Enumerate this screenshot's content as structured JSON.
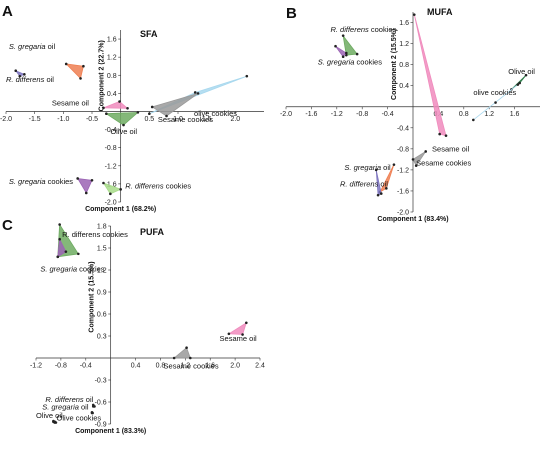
{
  "chart_data": [
    {
      "panel": "A",
      "type": "scatter",
      "title": "SFA",
      "xlabel": "Component 1 (68.2%)",
      "ylabel": "Component 2 (22.7%)",
      "xlim": [
        -2.0,
        2.5
      ],
      "ylim": [
        -2.0,
        1.8
      ],
      "xticks": [
        "-2.0",
        "-1.5",
        "-1.0",
        "-0.5",
        "0.5",
        "1.0",
        "1.5",
        "2.0"
      ],
      "yticks": [
        "1.6",
        "1.2",
        "0.8",
        "0.4",
        "-0.4",
        "-0.8",
        "-1.2",
        "-1.6",
        "-2.0"
      ],
      "series": [
        {
          "name": "S. gregaria oil",
          "italic": "S. gregaria",
          "rest": " oil",
          "color": "#ef7f52",
          "points": [
            [
              -0.95,
              1.05
            ],
            [
              -0.65,
              1.0
            ],
            [
              -0.7,
              0.73
            ]
          ],
          "label_at": [
            -1.95,
            1.38
          ]
        },
        {
          "name": "R. differens oil",
          "italic": "R. differens",
          "rest": " oil",
          "color": "#7d74bf",
          "points": [
            [
              -1.83,
              0.9
            ],
            [
              -1.68,
              0.82
            ],
            [
              -1.76,
              0.78
            ]
          ],
          "label_at": [
            -2.0,
            0.65
          ]
        },
        {
          "name": "Sesame oil",
          "color": "#f08bbd",
          "points": [
            [
              -0.3,
              0.08
            ],
            [
              -0.02,
              0.22
            ],
            [
              0.12,
              0.07
            ]
          ],
          "label_at": [
            -1.2,
            0.13
          ]
        },
        {
          "name": "olive cookies",
          "color": "#a8d8ee",
          "points": [
            [
              0.5,
              -0.05
            ],
            [
              2.2,
              0.78
            ],
            [
              1.3,
              0.42
            ]
          ],
          "label_at": [
            1.28,
            -0.1
          ]
        },
        {
          "name": "Sesame cookies",
          "color": "#9a9a9a",
          "points": [
            [
              0.55,
              0.1
            ],
            [
              1.35,
              0.4
            ],
            [
              0.8,
              -0.1
            ]
          ],
          "label_at": [
            0.65,
            -0.23
          ]
        },
        {
          "name": "Olive oil",
          "color": "#6eab62",
          "points": [
            [
              -0.25,
              -0.05
            ],
            [
              0.3,
              -0.02
            ],
            [
              0.05,
              -0.3
            ]
          ],
          "label_at": [
            -0.18,
            -0.5
          ]
        },
        {
          "name": "S. gregaria cookies",
          "italic": "S. gregaria",
          "rest": " cookies",
          "color": "#9b64b4",
          "points": [
            [
              -0.75,
              -1.48
            ],
            [
              -0.5,
              -1.52
            ],
            [
              -0.6,
              -1.8
            ]
          ],
          "label_at": [
            -1.95,
            -1.6
          ]
        },
        {
          "name": "R. differens cookies",
          "italic": "R. differens",
          "rest": " cookies",
          "color": "#a8dc8a",
          "points": [
            [
              -0.3,
              -1.58
            ],
            [
              0.0,
              -1.72
            ],
            [
              -0.18,
              -1.82
            ]
          ],
          "label_at": [
            0.08,
            -1.7
          ]
        }
      ]
    },
    {
      "panel": "B",
      "type": "scatter",
      "title": "MUFA",
      "xlabel": "Component 1 (83.4%)",
      "ylabel": "Component 2 (15.5%)",
      "xlim": [
        -2.0,
        2.0
      ],
      "ylim": [
        -2.0,
        1.8
      ],
      "xticks": [
        "-2.0",
        "-1.6",
        "-1.2",
        "-0.8",
        "-0.4",
        "0.4",
        "0.8",
        "1.2",
        "1.6"
      ],
      "yticks": [
        "1.6",
        "1.2",
        "0.8",
        "0.4",
        "-0.4",
        "-0.8",
        "-1.2",
        "-1.6",
        "-2.0"
      ],
      "series": [
        {
          "name": "R. differens cookies",
          "italic": "R. differens",
          "rest": " cookies",
          "color": "#6eab62",
          "points": [
            [
              -1.1,
              1.35
            ],
            [
              -0.88,
              1.0
            ],
            [
              -1.05,
              0.98
            ]
          ],
          "label_at": [
            -1.3,
            1.42
          ]
        },
        {
          "name": "S. gregaria cookies",
          "italic": "S. gregaria",
          "rest": " cookies",
          "color": "#9b64b4",
          "points": [
            [
              -1.22,
              1.15
            ],
            [
              -1.05,
              1.02
            ],
            [
              -1.1,
              0.95
            ]
          ],
          "label_at": [
            -1.5,
            0.8
          ]
        },
        {
          "name": "Olive oil",
          "color": "#2e7d4a",
          "points": [
            [
              1.55,
              0.33
            ],
            [
              1.78,
              0.6
            ],
            [
              1.68,
              0.45
            ]
          ],
          "label_at": [
            1.5,
            0.62
          ]
        },
        {
          "name": "olive cookies",
          "color": "#a8d8ee",
          "points": [
            [
              0.95,
              -0.25
            ],
            [
              1.65,
              0.42
            ],
            [
              1.3,
              0.08
            ]
          ],
          "label_at": [
            0.95,
            0.22
          ]
        },
        {
          "name": "Sesame oil",
          "color": "#f08bbd",
          "points": [
            [
              0.02,
              1.75
            ],
            [
              0.42,
              -0.52
            ],
            [
              0.52,
              -0.55
            ]
          ],
          "label_at": [
            0.3,
            -0.85
          ]
        },
        {
          "name": "Sesame cookies",
          "color": "#9a9a9a",
          "points": [
            [
              0.0,
              -1.0
            ],
            [
              0.2,
              -0.85
            ],
            [
              0.05,
              -1.12
            ]
          ],
          "label_at": [
            0.05,
            -1.12
          ]
        },
        {
          "name": "S. gregaria oil",
          "italic": "S. gregaria",
          "rest": " oil",
          "color": "#ef7f52",
          "points": [
            [
              -0.52,
              -1.62
            ],
            [
              -0.3,
              -1.1
            ],
            [
              -0.42,
              -1.55
            ]
          ],
          "label_at": [
            -1.08,
            -1.2
          ]
        },
        {
          "name": "R. differens oil",
          "italic": "R. differens",
          "rest": " oil",
          "color": "#7d74bf",
          "points": [
            [
              -0.58,
              -1.2
            ],
            [
              -0.5,
              -1.65
            ],
            [
              -0.55,
              -1.68
            ]
          ],
          "label_at": [
            -1.15,
            -1.52
          ]
        }
      ]
    },
    {
      "panel": "C",
      "type": "scatter",
      "title": "PUFA",
      "xlabel": "Component 1 (83.3%)",
      "ylabel": "Component 2 (15.5%)",
      "xlim": [
        -1.2,
        2.4
      ],
      "ylim": [
        -0.9,
        1.8
      ],
      "xticks": [
        "-1.2",
        "-0.8",
        "-0.4",
        "0.4",
        "0.8",
        "1.2",
        "1.6",
        "2.0",
        "2.4"
      ],
      "yticks": [
        "1.8",
        "1.5",
        "1.2",
        "0.9",
        "0.6",
        "0.3",
        "-0.3",
        "-0.6",
        "-0.9"
      ],
      "series": [
        {
          "name": "R. differens cookies",
          "color": "#6eab62",
          "points": [
            [
              -0.82,
              1.82
            ],
            [
              -0.52,
              1.42
            ],
            [
              -0.85,
              1.38
            ]
          ],
          "label_at": [
            -0.78,
            1.65
          ]
        },
        {
          "name": "S. gregaria cookies",
          "italic": "S. gregaria",
          "rest": " cookies",
          "color": "#9b64b4",
          "points": [
            [
              -0.82,
              1.62
            ],
            [
              -0.72,
              1.45
            ],
            [
              -0.85,
              1.38
            ]
          ],
          "label_at": [
            -1.13,
            1.18
          ]
        },
        {
          "name": "Sesame oil",
          "color": "#f08bbd",
          "points": [
            [
              1.9,
              0.33
            ],
            [
              2.18,
              0.48
            ],
            [
              2.12,
              0.32
            ]
          ],
          "label_at": [
            1.75,
            0.23
          ]
        },
        {
          "name": "Sesame cookies",
          "color": "#9a9a9a",
          "points": [
            [
              1.02,
              0.0
            ],
            [
              1.22,
              0.14
            ],
            [
              1.28,
              0.0
            ]
          ],
          "label_at": [
            0.85,
            -0.14
          ]
        },
        {
          "name": "R. differens oil",
          "italic": "R. differens",
          "rest": " oil",
          "color": "#7d74bf",
          "points": [
            [
              -0.28,
              -0.64
            ],
            [
              -0.26,
              -0.66
            ],
            [
              -0.28,
              -0.66
            ]
          ],
          "label_at": [
            -1.05,
            -0.6
          ]
        },
        {
          "name": "S. gregaria oil",
          "italic": "S. gregaria",
          "rest": " oil",
          "color": "#ef7f52",
          "points": [
            [
              -0.3,
              -0.74
            ],
            [
              -0.29,
              -0.75
            ],
            [
              -0.3,
              -0.75
            ]
          ],
          "label_at": [
            -1.1,
            -0.7
          ]
        },
        {
          "name": "Olive oil",
          "color": "#2e7d4a",
          "points": [
            [
              -0.92,
              -0.86
            ],
            [
              -0.9,
              -0.87
            ],
            [
              -0.92,
              -0.87
            ]
          ],
          "label_at": [
            -1.2,
            -0.82
          ]
        },
        {
          "name": "Olive cookies",
          "color": "#a8d8ee",
          "points": [
            [
              -0.9,
              -0.87
            ],
            [
              -0.88,
              -0.88
            ],
            [
              -0.9,
              -0.88
            ]
          ],
          "label_at": [
            -0.87,
            -0.85
          ]
        }
      ]
    }
  ]
}
